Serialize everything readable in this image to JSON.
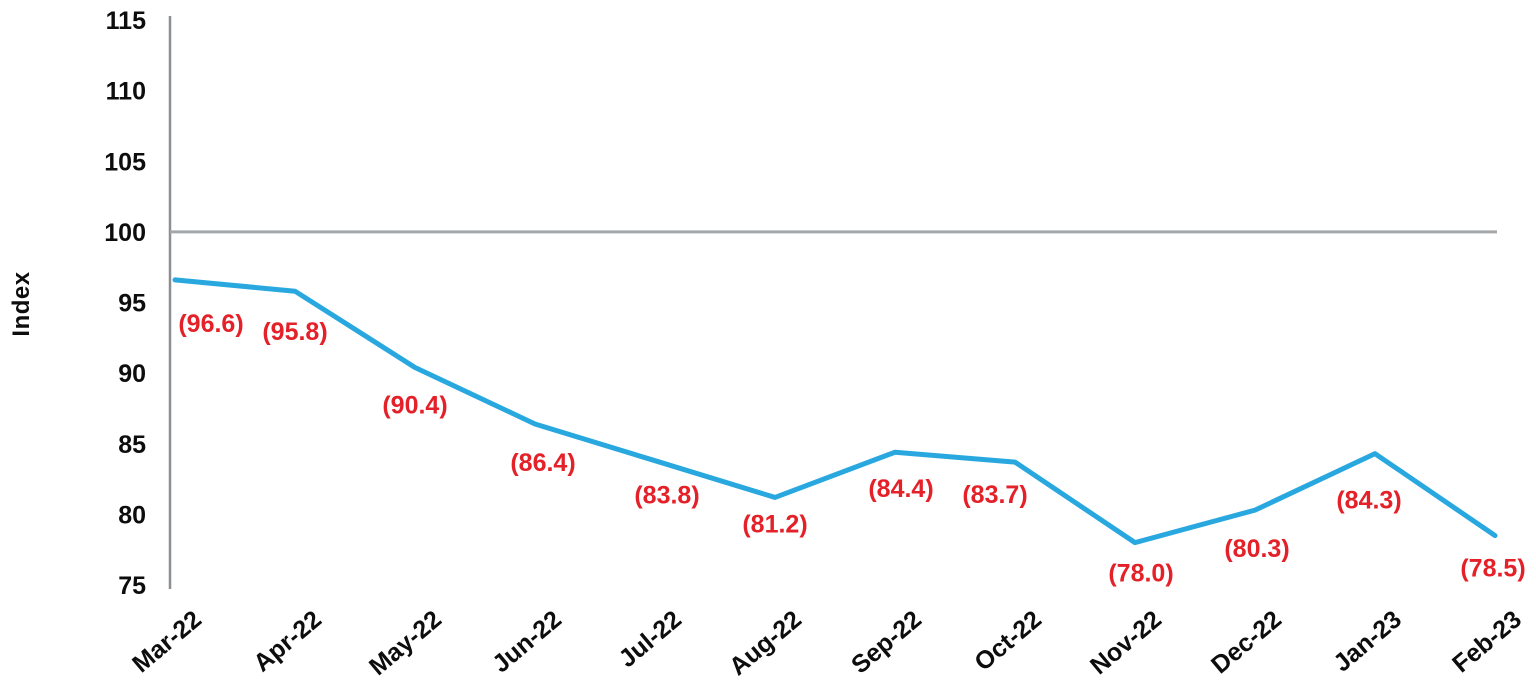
{
  "chart_data": {
    "type": "line",
    "title": "",
    "xlabel": "",
    "ylabel": "Index",
    "categories": [
      "Mar-22",
      "Apr-22",
      "May-22",
      "Jun-22",
      "Jul-22",
      "Aug-22",
      "Sep-22",
      "Oct-22",
      "Nov-22",
      "Dec-22",
      "Jan-23",
      "Feb-23"
    ],
    "series": [
      {
        "name": "Index",
        "values": [
          96.6,
          95.8,
          90.4,
          86.4,
          83.8,
          81.2,
          84.4,
          83.7,
          78.0,
          80.3,
          84.3,
          78.5
        ]
      }
    ],
    "data_labels": [
      "(96.6)",
      "(95.8)",
      "(90.4)",
      "(86.4)",
      "(83.8)",
      "(81.2)",
      "(84.4)",
      "(83.7)",
      "(78.0)",
      "(80.3)",
      "(84.3)",
      "(78.5)"
    ],
    "ylim": [
      75,
      115
    ],
    "yticks": [
      115,
      110,
      105,
      100,
      95,
      90,
      85,
      80,
      75
    ],
    "reference_line_value": 100,
    "grid": "off",
    "legend_position": "none",
    "x_tick_rotation_deg": -40,
    "colors": {
      "line": "#29a8e0",
      "data_label": "#e42028",
      "axis": "#8c8f92",
      "reference_line": "#a5a8ab",
      "tick_text": "#0d0d0d",
      "background": "#ffffff"
    }
  }
}
